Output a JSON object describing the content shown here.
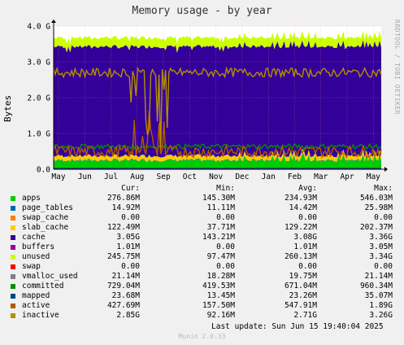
{
  "title": "Memory usage - by year",
  "side_label": "RRDTOOL / TOBI OETIKER",
  "footer_last_update": "Last update:  Sun Jun 15 19:40:04 2025",
  "footer_version": "Munin 2.0.33",
  "legend_headers": {
    "cur": "Cur:",
    "min": "Min:",
    "avg": "Avg:",
    "max": "Max:"
  },
  "chart_data": {
    "type": "area",
    "title": "Memory usage - by year",
    "xlabel": "",
    "ylabel": "Bytes",
    "ylim": [
      0,
      4.0
    ],
    "yunit": "G",
    "yticks": [
      "0.0",
      "1.0 G",
      "2.0 G",
      "3.0 G",
      "4.0 G"
    ],
    "xticks": [
      "May",
      "Jun",
      "Jul",
      "Aug",
      "Sep",
      "Oct",
      "Nov",
      "Dec",
      "Jan",
      "Feb",
      "Mar",
      "Apr",
      "May"
    ],
    "grid": true,
    "stacked_series": [
      {
        "name": "apps",
        "color": "#00cc00",
        "level": 0.23
      },
      {
        "name": "page_tables",
        "color": "#0066b3",
        "level": 0.015
      },
      {
        "name": "swap_cache",
        "color": "#ff8000",
        "level": 0.0
      },
      {
        "name": "slab_cache",
        "color": "#ffcc00",
        "level": 0.12
      },
      {
        "name": "cache",
        "color": "#330099",
        "level": 3.05
      },
      {
        "name": "buffers",
        "color": "#990099",
        "level": 0.001
      },
      {
        "name": "unused",
        "color": "#ccff00",
        "level": 0.25
      },
      {
        "name": "swap",
        "color": "#ff0000",
        "level": 0.0
      }
    ],
    "line_series": [
      {
        "name": "vmalloc_used",
        "color": "#808080",
        "level": 0.02
      },
      {
        "name": "committed",
        "color": "#008f00",
        "level": 0.67
      },
      {
        "name": "mapped",
        "color": "#00487d",
        "level": 0.023
      },
      {
        "name": "active",
        "color": "#b35a00",
        "level": 0.55
      },
      {
        "name": "inactive",
        "color": "#b38f00",
        "level": 2.7
      }
    ]
  },
  "legend_rows": [
    {
      "name": "apps",
      "color": "#00cc00",
      "cur": "276.86M",
      "min": "145.30M",
      "avg": "234.93M",
      "max": "546.03M"
    },
    {
      "name": "page_tables",
      "color": "#0066b3",
      "cur": "14.92M",
      "min": "11.11M",
      "avg": "14.42M",
      "max": "25.98M"
    },
    {
      "name": "swap_cache",
      "color": "#ff8000",
      "cur": "0.00",
      "min": "0.00",
      "avg": "0.00",
      "max": "0.00"
    },
    {
      "name": "slab_cache",
      "color": "#ffcc00",
      "cur": "122.49M",
      "min": "37.71M",
      "avg": "129.22M",
      "max": "202.37M"
    },
    {
      "name": "cache",
      "color": "#330099",
      "cur": "3.05G",
      "min": "143.21M",
      "avg": "3.08G",
      "max": "3.36G"
    },
    {
      "name": "buffers",
      "color": "#990099",
      "cur": "1.01M",
      "min": "0.00",
      "avg": "1.01M",
      "max": "3.05M"
    },
    {
      "name": "unused",
      "color": "#ccff00",
      "cur": "245.75M",
      "min": "97.47M",
      "avg": "260.13M",
      "max": "3.34G"
    },
    {
      "name": "swap",
      "color": "#ff0000",
      "cur": "0.00",
      "min": "0.00",
      "avg": "0.00",
      "max": "0.00"
    },
    {
      "name": "vmalloc_used",
      "color": "#808080",
      "cur": "21.14M",
      "min": "18.28M",
      "avg": "19.75M",
      "max": "21.14M"
    },
    {
      "name": "committed",
      "color": "#008f00",
      "cur": "729.04M",
      "min": "419.53M",
      "avg": "671.04M",
      "max": "960.34M"
    },
    {
      "name": "mapped",
      "color": "#00487d",
      "cur": "23.68M",
      "min": "13.45M",
      "avg": "23.26M",
      "max": "35.07M"
    },
    {
      "name": "active",
      "color": "#b35a00",
      "cur": "427.69M",
      "min": "157.50M",
      "avg": "547.91M",
      "max": "1.89G"
    },
    {
      "name": "inactive",
      "color": "#b38f00",
      "cur": "2.85G",
      "min": "92.16M",
      "avg": "2.71G",
      "max": "3.26G"
    }
  ]
}
